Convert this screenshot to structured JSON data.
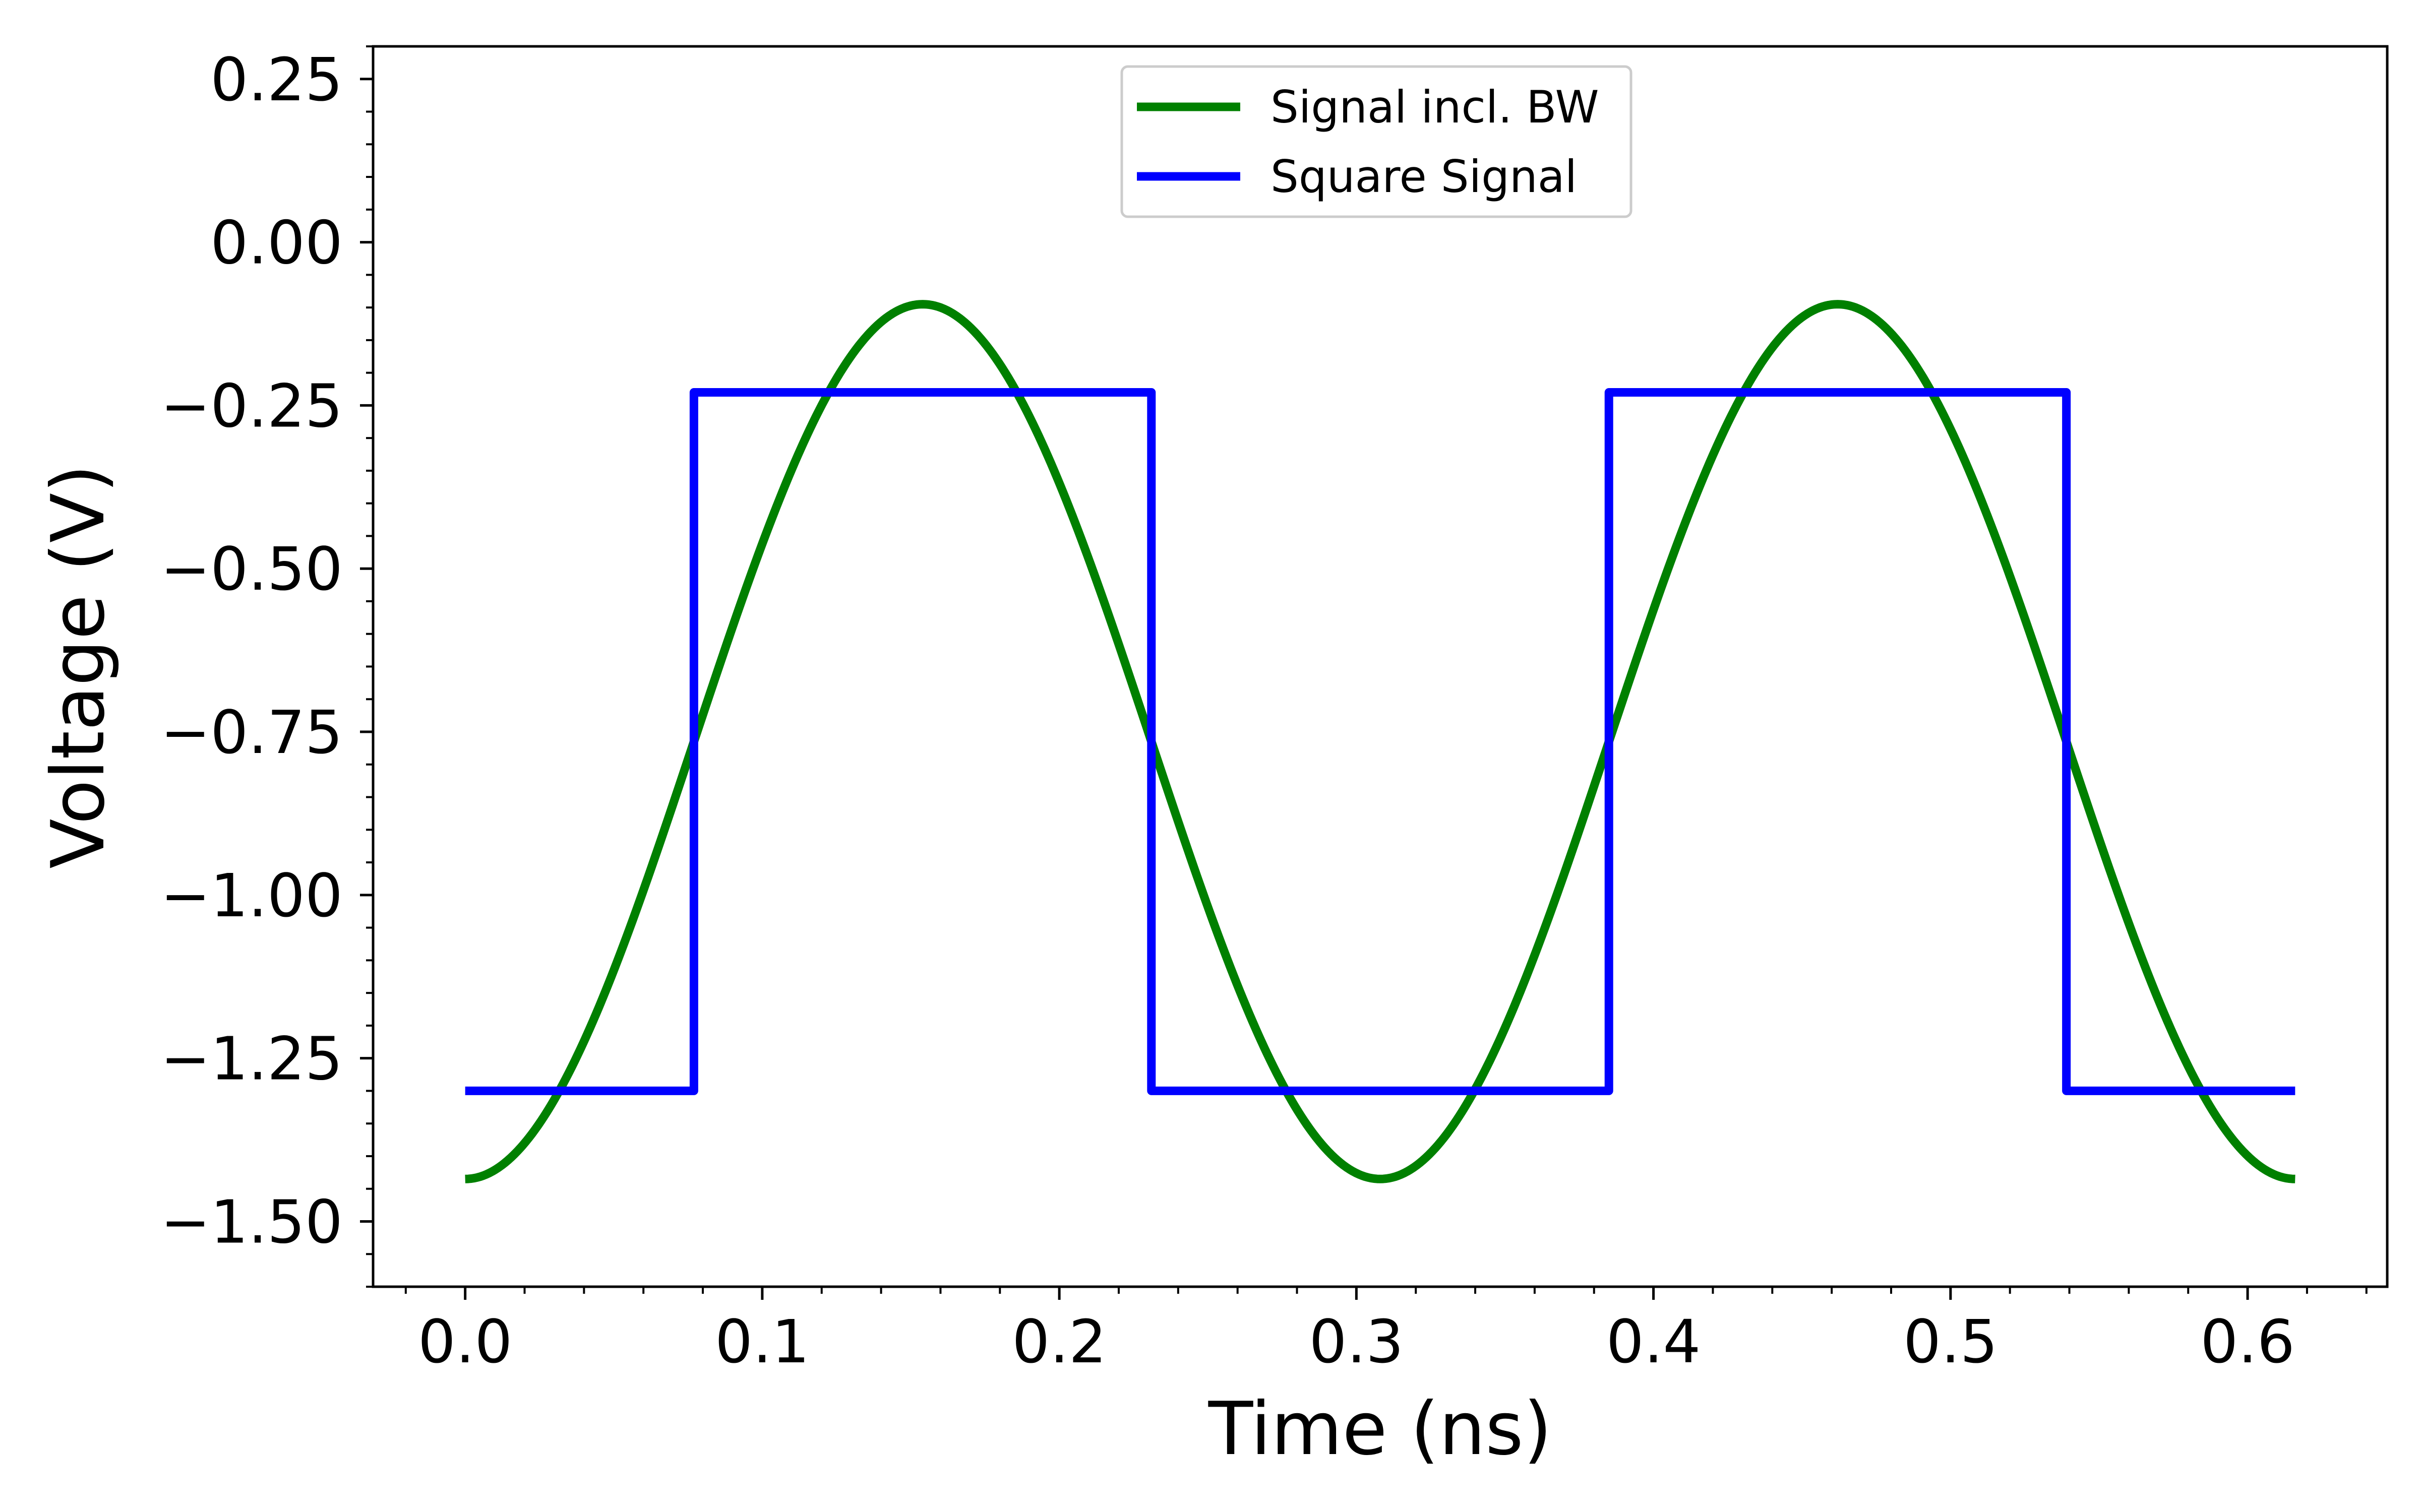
{
  "chart_data": {
    "type": "line",
    "xlabel": "Time (ns)",
    "ylabel": "Voltage (V)",
    "xlim": [
      -0.031,
      0.647
    ],
    "ylim": [
      -1.6,
      0.3
    ],
    "xticks": [
      0.0,
      0.1,
      0.2,
      0.3,
      0.4,
      0.5,
      0.6
    ],
    "xtick_labels": [
      "0.0",
      "0.1",
      "0.2",
      "0.3",
      "0.4",
      "0.5",
      "0.6"
    ],
    "yticks": [
      0.25,
      0.0,
      -0.25,
      -0.5,
      -0.75,
      -1.0,
      -1.25,
      -1.5
    ],
    "ytick_labels": [
      "0.25",
      "0.00",
      "−0.25",
      "−0.50",
      "−0.75",
      "−1.00",
      "−1.25",
      "−1.50"
    ],
    "x_minor_step": 0.02,
    "y_minor_step": 0.05,
    "grid": false,
    "legend_position": "top-center",
    "series": [
      {
        "name": "Signal incl. BW",
        "color": "#008000",
        "kind": "sinusoid",
        "x_range": [
          0.0,
          0.616
        ],
        "period": 0.308,
        "min": -1.435,
        "max": -0.095,
        "starts_at": "min"
      },
      {
        "name": "Square Signal",
        "color": "#0000ff",
        "kind": "step",
        "x": [
          0.0,
          0.077,
          0.077,
          0.231,
          0.231,
          0.385,
          0.385,
          0.539,
          0.539,
          0.616
        ],
        "y": [
          -1.3,
          -1.3,
          -0.23,
          -0.23,
          -1.3,
          -1.3,
          -0.23,
          -0.23,
          -1.3,
          -1.3
        ]
      }
    ]
  }
}
